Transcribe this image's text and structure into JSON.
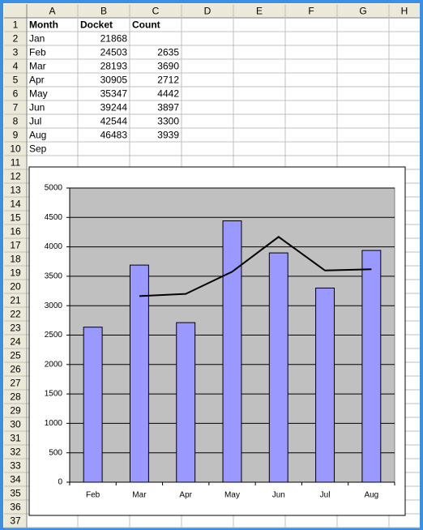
{
  "sheet": {
    "columns": [
      "A",
      "B",
      "C",
      "D",
      "E",
      "F",
      "G",
      "H"
    ],
    "row_numbers": [
      1,
      2,
      3,
      4,
      5,
      6,
      7,
      8,
      9,
      10,
      11,
      12,
      13,
      14,
      15,
      16,
      17,
      18,
      19,
      20,
      21,
      22,
      23,
      24,
      25,
      26,
      27,
      28,
      29,
      30,
      31,
      32,
      33,
      34,
      35,
      36,
      37
    ],
    "cells": [
      [
        "Month",
        "Docket",
        "Count"
      ],
      [
        "Jan",
        21868
      ],
      [
        "Feb",
        24503,
        2635
      ],
      [
        "Mar",
        28193,
        3690
      ],
      [
        "Apr",
        30905,
        2712
      ],
      [
        "May",
        35347,
        4442
      ],
      [
        "Jun",
        39244,
        3897
      ],
      [
        "Jul",
        42544,
        3300
      ],
      [
        "Aug",
        46483,
        3939
      ],
      [
        "Sep"
      ]
    ]
  },
  "chart_data": {
    "type": "bar",
    "categories": [
      "Feb",
      "Mar",
      "Apr",
      "May",
      "Jun",
      "Jul",
      "Aug"
    ],
    "series": [
      {
        "type": "bar",
        "color": "#9999ff",
        "values": [
          2635,
          3690,
          2712,
          4442,
          3897,
          3300,
          3939
        ]
      },
      {
        "type": "line",
        "color": "#000000",
        "values": [
          null,
          3162.5,
          3201,
          3577,
          4169.5,
          3598.5,
          3619.5
        ]
      }
    ],
    "ylim": [
      0,
      5000
    ],
    "yticks": [
      0,
      500,
      1000,
      1500,
      2000,
      2500,
      3000,
      3500,
      4000,
      4500,
      5000
    ],
    "grid": true,
    "plot_background": "#c0c0c0"
  }
}
